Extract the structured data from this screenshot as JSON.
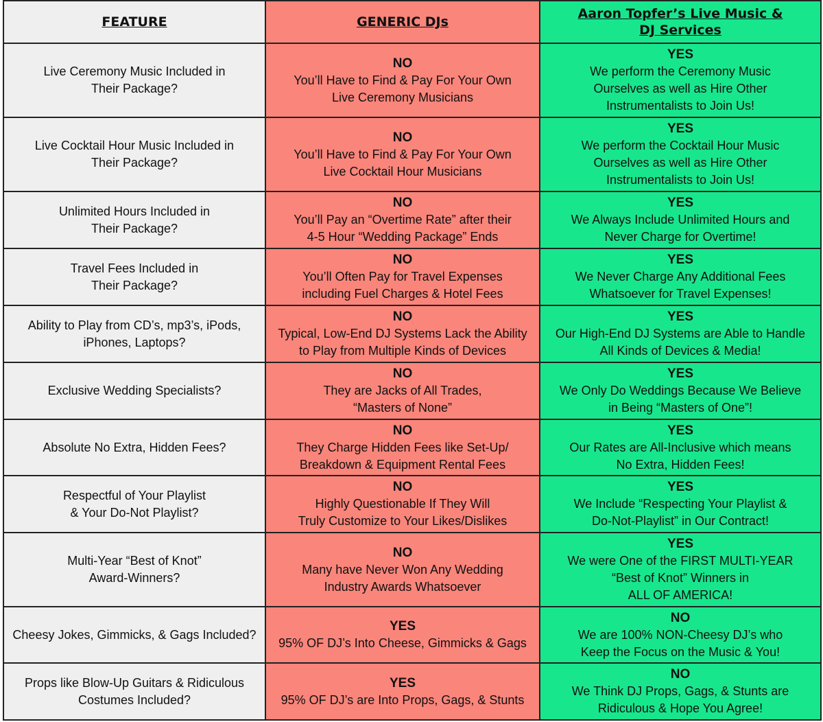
{
  "header": [
    [
      "FEATURE"
    ],
    [
      "GENERIC DJs"
    ],
    [
      "Aaron Topfer’s Live Music &",
      "DJ Services"
    ]
  ],
  "rows": [
    {
      "feature": [
        "Live Ceremony Music Included in",
        "Their Package?"
      ],
      "generic": {
        "verdict": "NO",
        "lines": [
          "You’ll Have to Find & Pay For Your Own",
          "Live Ceremony Musicians"
        ]
      },
      "aaron": {
        "verdict": "YES",
        "lines": [
          "We perform the Ceremony Music",
          "Ourselves as well as Hire Other",
          "Instrumentalists to Join Us!"
        ]
      }
    },
    {
      "feature": [
        "Live Cocktail Hour Music Included in",
        "Their Package?"
      ],
      "generic": {
        "verdict": "NO",
        "lines": [
          "You’ll Have to Find & Pay For Your Own",
          "Live Cocktail Hour Musicians"
        ]
      },
      "aaron": {
        "verdict": "YES",
        "lines": [
          "We perform the Cocktail Hour Music",
          "Ourselves as well as Hire Other",
          "Instrumentalists to Join Us!"
        ]
      }
    },
    {
      "feature": [
        "Unlimited Hours Included in",
        "Their Package?"
      ],
      "generic": {
        "verdict": "NO",
        "lines": [
          "You’ll Pay an “Overtime Rate” after their",
          "4-5 Hour “Wedding Package” Ends"
        ]
      },
      "aaron": {
        "verdict": "YES",
        "lines": [
          "We Always Include Unlimited Hours and",
          "Never Charge for Overtime!"
        ]
      }
    },
    {
      "feature": [
        "Travel Fees Included in",
        "Their Package?"
      ],
      "generic": {
        "verdict": "NO",
        "lines": [
          "You’ll Often Pay for Travel Expenses",
          "including Fuel Charges & Hotel Fees"
        ]
      },
      "aaron": {
        "verdict": "YES",
        "lines": [
          "We Never Charge Any Additional Fees",
          "Whatsoever for Travel Expenses!"
        ]
      }
    },
    {
      "feature": [
        "Ability to Play from CD’s, mp3’s, iPods,",
        "iPhones, Laptops?"
      ],
      "generic": {
        "verdict": "NO",
        "lines": [
          "Typical, Low-End DJ Systems Lack the Ability",
          "to Play from Multiple Kinds of Devices"
        ]
      },
      "aaron": {
        "verdict": "YES",
        "lines": [
          "Our High-End DJ Systems are Able to Handle",
          "All Kinds of Devices & Media!"
        ]
      }
    },
    {
      "feature": [
        "Exclusive Wedding Specialists?"
      ],
      "generic": {
        "verdict": "NO",
        "lines": [
          "They are Jacks of All Trades,",
          "“Masters of None”"
        ]
      },
      "aaron": {
        "verdict": "YES",
        "lines": [
          "We Only Do Weddings Because We Believe",
          "in Being “Masters of One”!"
        ]
      }
    },
    {
      "feature": [
        "Absolute No Extra, Hidden Fees?"
      ],
      "generic": {
        "verdict": "NO",
        "lines": [
          "They Charge Hidden Fees like Set-Up/",
          "Breakdown & Equipment Rental Fees"
        ]
      },
      "aaron": {
        "verdict": "YES",
        "lines": [
          "Our Rates are All-Inclusive which means",
          "No Extra, Hidden Fees!"
        ]
      }
    },
    {
      "feature": [
        "Respectful of Your Playlist",
        "& Your Do-Not Playlist?"
      ],
      "generic": {
        "verdict": "NO",
        "lines": [
          "Highly Questionable If They Will",
          "Truly Customize to Your Likes/Dislikes"
        ]
      },
      "aaron": {
        "verdict": "YES",
        "lines": [
          "We Include “Respecting Your Playlist &",
          "Do-Not-Playlist” in Our Contract!"
        ]
      }
    },
    {
      "feature": [
        "Multi-Year “Best of Knot”",
        "Award-Winners?"
      ],
      "generic": {
        "verdict": "NO",
        "lines": [
          "Many have Never Won Any Wedding",
          "Industry Awards Whatsoever"
        ]
      },
      "aaron": {
        "verdict": "YES",
        "lines": [
          "We were One of the FIRST MULTI-YEAR",
          "“Best of Knot” Winners in",
          "ALL OF AMERICA!"
        ]
      }
    },
    {
      "feature": [
        "Cheesy Jokes, Gimmicks, & Gags Included?"
      ],
      "generic": {
        "verdict": "YES",
        "lines": [
          "95% OF DJ’s Into Cheese, Gimmicks & Gags"
        ]
      },
      "aaron": {
        "verdict": "NO",
        "lines": [
          "We are 100% NON-Cheesy DJ’s who",
          "Keep the Focus on the Music & You!"
        ]
      }
    },
    {
      "feature": [
        "Props like Blow-Up Guitars & Ridiculous",
        "Costumes Included?"
      ],
      "generic": {
        "verdict": "YES",
        "lines": [
          "95% OF DJ’s are Into Props, Gags, & Stunts"
        ]
      },
      "aaron": {
        "verdict": "NO",
        "lines": [
          "We Think DJ Props, Gags, & Stunts are",
          "Ridiculous & Hope You Agree!"
        ]
      }
    }
  ]
}
